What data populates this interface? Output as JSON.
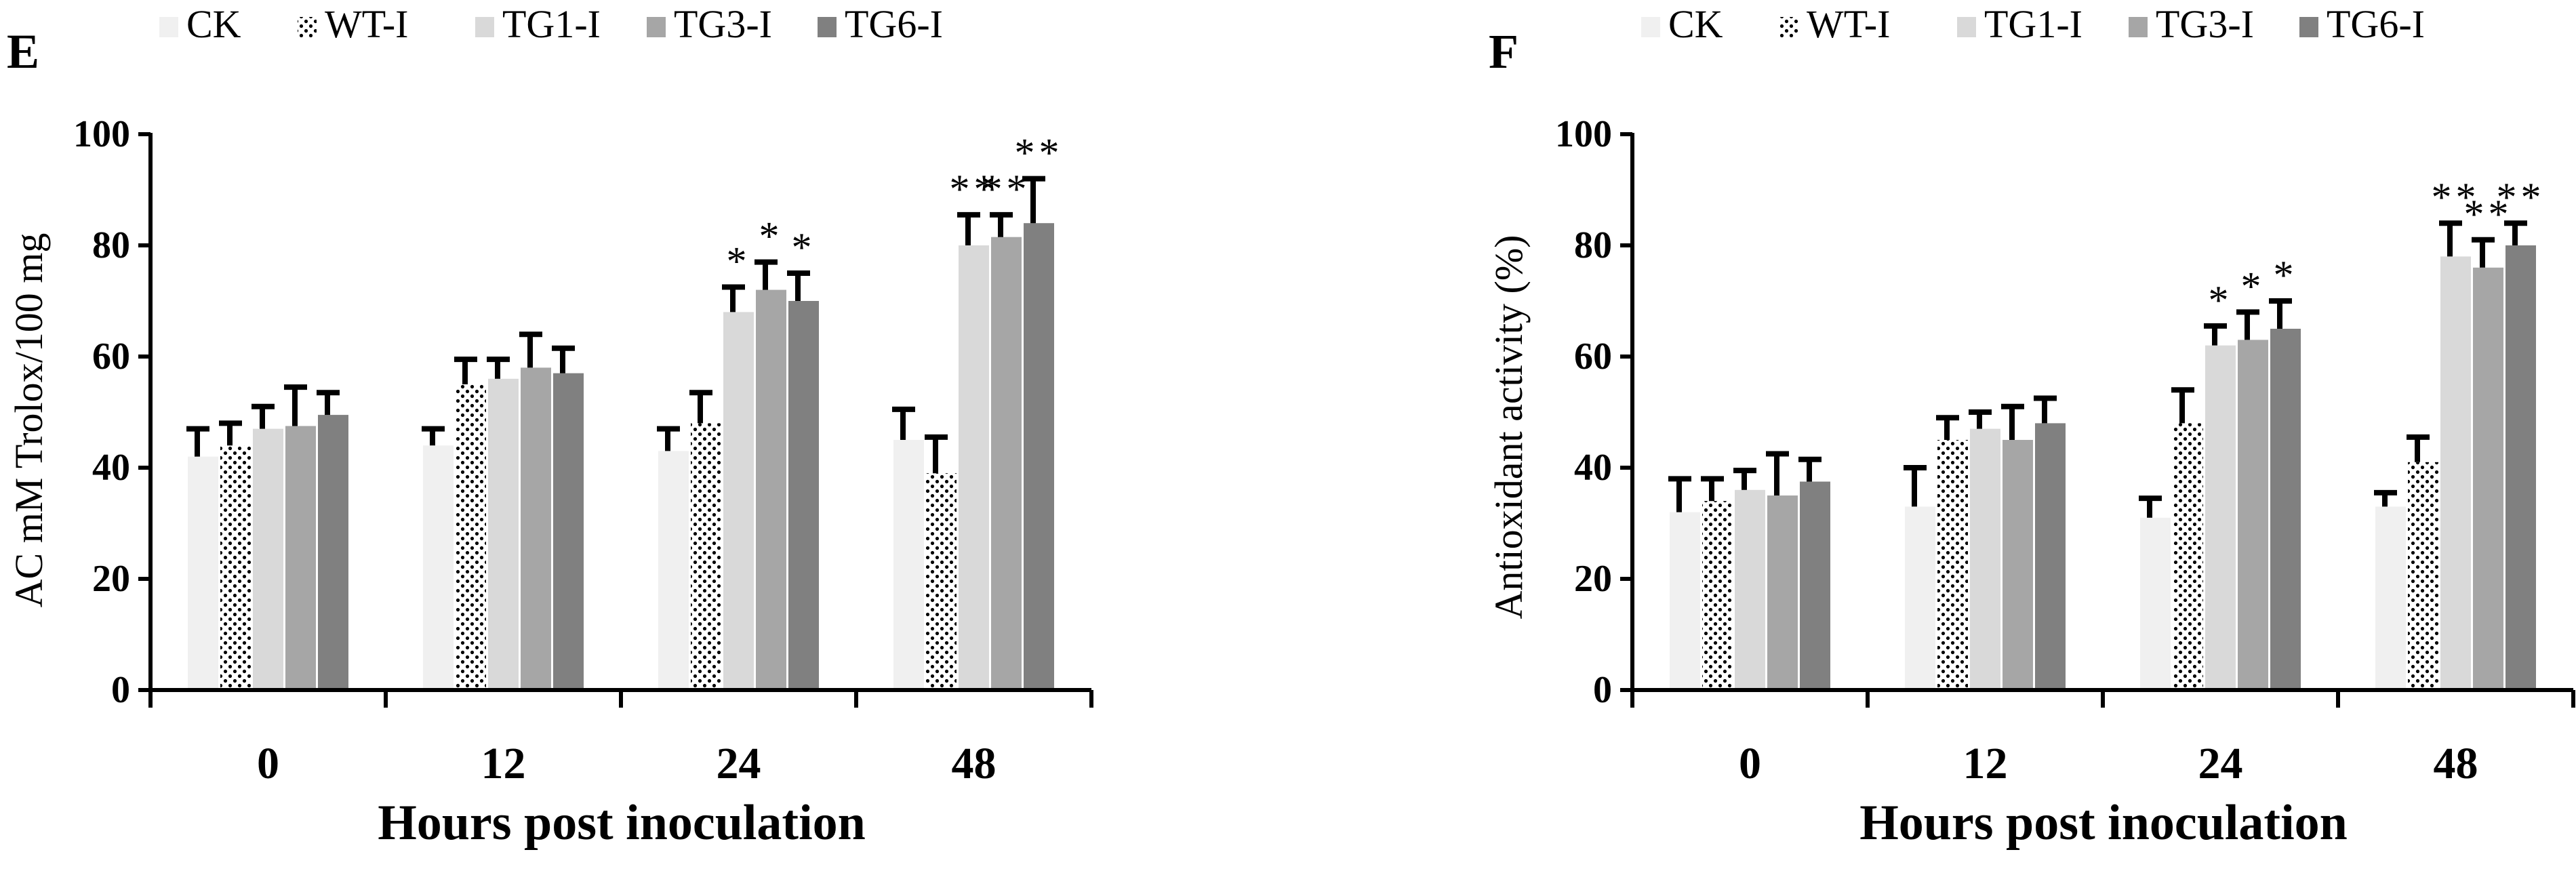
{
  "colors": {
    "axis": "#000000",
    "errorbar": "#000000",
    "CK": "#f0f0f0",
    "WT-I": "#ffffff",
    "TG1-I": "#d9d9d9",
    "TG3-I": "#a6a6a6",
    "TG6-I": "#808080"
  },
  "chart_data": [
    {
      "type": "bar",
      "panel_label": "E",
      "title": "",
      "xlabel": "Hours post inoculation",
      "ylabel": "AC mM Trolox/100 mg",
      "ylim": [
        0,
        100
      ],
      "yticks": [
        "0",
        "20",
        "40",
        "60",
        "80",
        "100"
      ],
      "categories": [
        "0",
        "12",
        "24",
        "48"
      ],
      "legend_position": "top",
      "series": [
        {
          "name": "CK",
          "pattern": "solid",
          "values": [
            42,
            44,
            43,
            45
          ],
          "errors": [
            5,
            3,
            4,
            5.5
          ],
          "sig": [
            "",
            "",
            "",
            ""
          ]
        },
        {
          "name": "WT-I",
          "pattern": "dots",
          "values": [
            44,
            55,
            48,
            39
          ],
          "errors": [
            4,
            4.5,
            5.5,
            6.5
          ],
          "sig": [
            "",
            "",
            "",
            ""
          ]
        },
        {
          "name": "TG1-I",
          "pattern": "solid",
          "values": [
            47,
            56,
            68,
            80
          ],
          "errors": [
            4,
            3.5,
            4.5,
            5.5
          ],
          "sig": [
            "",
            "",
            "*",
            "**"
          ]
        },
        {
          "name": "TG3-I",
          "pattern": "solid",
          "values": [
            47.5,
            58,
            72,
            81.5
          ],
          "errors": [
            7,
            6,
            5,
            4
          ],
          "sig": [
            "",
            "",
            "*",
            "**"
          ]
        },
        {
          "name": "TG6-I",
          "pattern": "solid",
          "values": [
            49.5,
            57,
            70,
            84
          ],
          "errors": [
            4,
            4.5,
            5,
            8
          ],
          "sig": [
            "",
            "",
            "*",
            "**"
          ]
        }
      ]
    },
    {
      "type": "bar",
      "panel_label": "F",
      "title": "",
      "xlabel": "Hours post inoculation",
      "ylabel": "Antioxidant activity (%)",
      "ylim": [
        0,
        100
      ],
      "yticks": [
        "0",
        "20",
        "40",
        "60",
        "80",
        "100"
      ],
      "categories": [
        "0",
        "12",
        "24",
        "48"
      ],
      "legend_position": "top",
      "series": [
        {
          "name": "CK",
          "pattern": "solid",
          "values": [
            32,
            33,
            31,
            33
          ],
          "errors": [
            6,
            7,
            3.5,
            2.5
          ],
          "sig": [
            "",
            "",
            "",
            ""
          ]
        },
        {
          "name": "WT-I",
          "pattern": "dots",
          "values": [
            34,
            45,
            48,
            41
          ],
          "errors": [
            4,
            4,
            6,
            4.5
          ],
          "sig": [
            "",
            "",
            "",
            ""
          ]
        },
        {
          "name": "TG1-I",
          "pattern": "solid",
          "values": [
            36,
            47,
            62,
            78
          ],
          "errors": [
            3.5,
            3,
            3.5,
            6
          ],
          "sig": [
            "",
            "",
            "*",
            "**"
          ]
        },
        {
          "name": "TG3-I",
          "pattern": "solid",
          "values": [
            35,
            45,
            63,
            76
          ],
          "errors": [
            7.5,
            6,
            5,
            5
          ],
          "sig": [
            "",
            "",
            "*",
            "**"
          ]
        },
        {
          "name": "TG6-I",
          "pattern": "solid",
          "values": [
            37.5,
            48,
            65,
            80
          ],
          "errors": [
            4,
            4.5,
            5,
            4
          ],
          "sig": [
            "",
            "",
            "*",
            "**"
          ]
        }
      ]
    }
  ]
}
